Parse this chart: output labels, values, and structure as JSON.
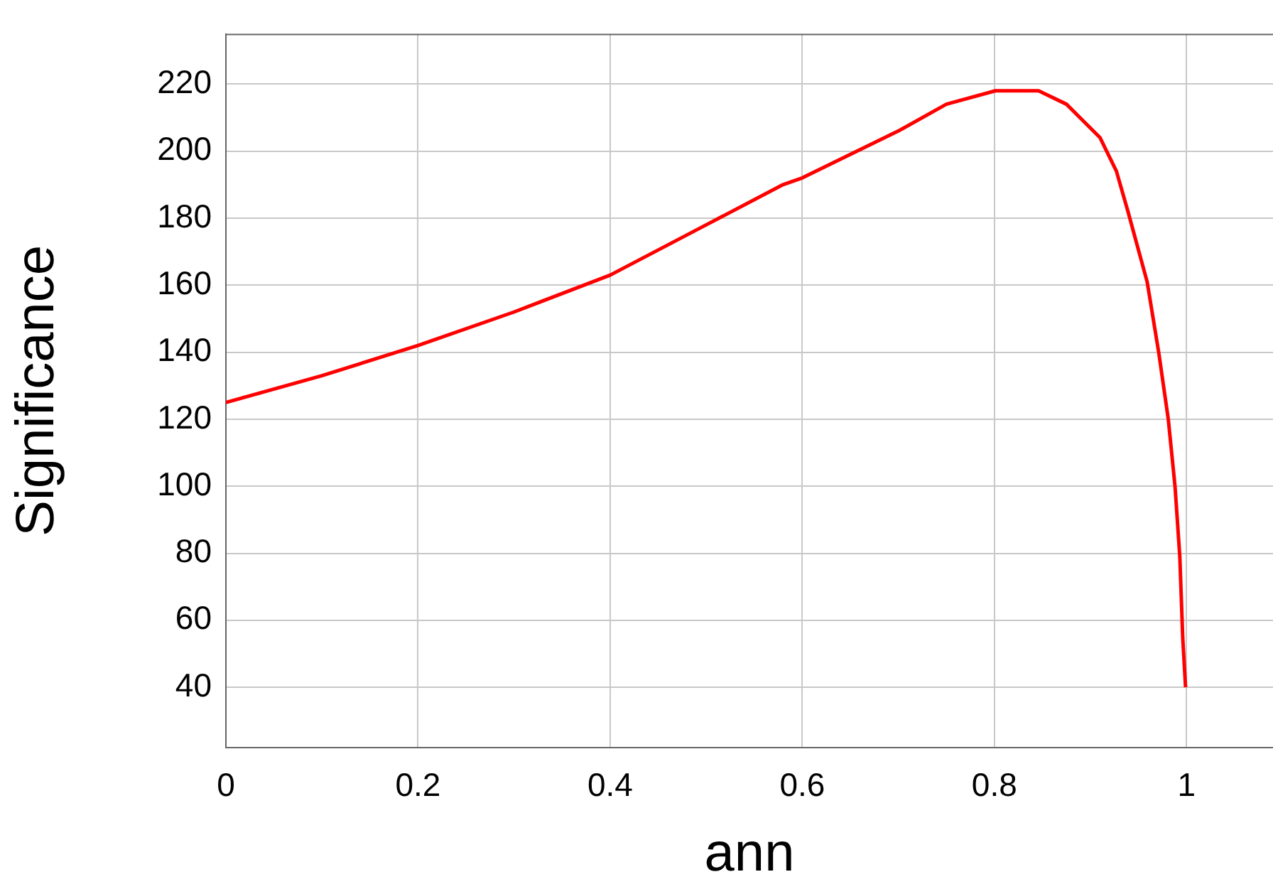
{
  "chart_data": {
    "type": "line",
    "xlabel": "ann",
    "ylabel": "Significance",
    "x": [
      0,
      0.1,
      0.2,
      0.3,
      0.4,
      0.5,
      0.58,
      0.6,
      0.65,
      0.7,
      0.75,
      0.801,
      0.846,
      0.875,
      0.91,
      0.927,
      0.939,
      0.959,
      0.971,
      0.981,
      0.988,
      0.993,
      0.996,
      0.999
    ],
    "series": [
      {
        "color": "#ff0000",
        "values": [
          125,
          133,
          142,
          152,
          163,
          178,
          190,
          192,
          199,
          206,
          214,
          218,
          218,
          214,
          204,
          194,
          182,
          161,
          140,
          120,
          100,
          79,
          55,
          40
        ]
      }
    ],
    "xlim": [
      0,
      1.09
    ],
    "xticks": [
      0,
      0.2,
      0.4,
      0.6,
      0.8,
      1
    ],
    "ylim": [
      22,
      235
    ],
    "yticks": [
      40,
      60,
      80,
      100,
      120,
      140,
      160,
      180,
      200,
      220
    ],
    "grid": true,
    "legend": false,
    "marker": "none",
    "line_style": "solid"
  }
}
